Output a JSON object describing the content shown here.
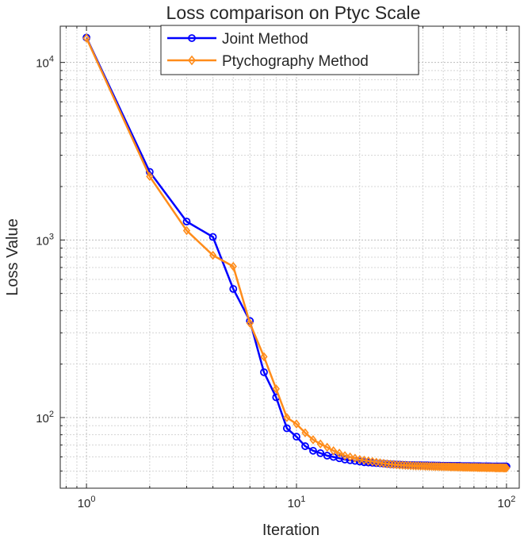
{
  "chart_data": {
    "type": "line",
    "title": "Loss comparison on Ptyc Scale",
    "xlabel": "Iteration",
    "ylabel": "Loss Value",
    "xscale": "log",
    "yscale": "log",
    "xlim": [
      0.75,
      115
    ],
    "ylim": [
      40,
      16000
    ],
    "grid": true,
    "minor_grid": true,
    "legend_placement": "top-center",
    "x_ticks": [
      {
        "base": "10",
        "exp": "0",
        "value": 1
      },
      {
        "base": "10",
        "exp": "1",
        "value": 10
      },
      {
        "base": "10",
        "exp": "2",
        "value": 100
      }
    ],
    "y_ticks": [
      {
        "base": "10",
        "exp": "2",
        "value": 100
      },
      {
        "base": "10",
        "exp": "3",
        "value": 1000
      },
      {
        "base": "10",
        "exp": "4",
        "value": 10000
      }
    ],
    "series": [
      {
        "name": "Joint Method",
        "color": "#0000ff",
        "marker": "circle",
        "x": [
          1,
          2,
          3,
          4,
          5,
          6,
          7,
          8,
          9,
          10,
          11,
          12,
          13,
          14,
          15,
          16,
          17,
          18,
          19,
          20,
          21,
          22,
          23,
          24,
          25,
          26,
          27,
          28,
          29,
          30,
          31,
          32,
          33,
          34,
          35,
          36,
          37,
          38,
          39,
          40,
          41,
          42,
          43,
          44,
          45,
          46,
          47,
          48,
          49,
          50,
          51,
          52,
          53,
          54,
          55,
          56,
          57,
          58,
          59,
          60,
          61,
          62,
          63,
          64,
          65,
          66,
          67,
          68,
          69,
          70,
          71,
          72,
          73,
          74,
          75,
          76,
          77,
          78,
          79,
          80,
          81,
          82,
          83,
          84,
          85,
          86,
          87,
          88,
          89,
          90,
          91,
          92,
          93,
          94,
          95,
          96,
          97,
          98,
          99,
          100
        ],
        "y": [
          13800,
          2420,
          1270,
          1040,
          530,
          350,
          180,
          130,
          87,
          78,
          69,
          65,
          63,
          61,
          60,
          59,
          58,
          57.5,
          57,
          56.5,
          56,
          55.8,
          55.6,
          55.4,
          55.2,
          55,
          54.8,
          54.6,
          54.5,
          54.4,
          54.3,
          54.2,
          54.1,
          54,
          54,
          54,
          53.9,
          53.9,
          53.9,
          53.8,
          53.8,
          53.8,
          53.7,
          53.7,
          53.7,
          53.6,
          53.6,
          53.6,
          53.5,
          53.5,
          53.5,
          53.5,
          53.5,
          53.5,
          53.4,
          53.4,
          53.4,
          53.4,
          53.4,
          53.4,
          53.3,
          53.3,
          53.3,
          53.3,
          53.3,
          53.3,
          53.3,
          53.2,
          53.2,
          53.2,
          53.2,
          53.2,
          53.2,
          53.2,
          53.2,
          53.1,
          53.1,
          53.1,
          53.1,
          53.1,
          53.1,
          53.1,
          53.1,
          53.1,
          53,
          53,
          53,
          53,
          53,
          53,
          53,
          53,
          53,
          53,
          53,
          53,
          53,
          53,
          53,
          53
        ]
      },
      {
        "name": "Ptychography Method",
        "color": "#ff8c1a",
        "marker": "diamond",
        "x": [
          1,
          2,
          3,
          4,
          5,
          6,
          7,
          8,
          9,
          10,
          11,
          12,
          13,
          14,
          15,
          16,
          17,
          18,
          19,
          20,
          21,
          22,
          23,
          24,
          25,
          26,
          27,
          28,
          29,
          30,
          31,
          32,
          33,
          34,
          35,
          36,
          37,
          38,
          39,
          40,
          41,
          42,
          43,
          44,
          45,
          46,
          47,
          48,
          49,
          50,
          51,
          52,
          53,
          54,
          55,
          56,
          57,
          58,
          59,
          60,
          61,
          62,
          63,
          64,
          65,
          66,
          67,
          68,
          69,
          70,
          71,
          72,
          73,
          74,
          75,
          76,
          77,
          78,
          79,
          80,
          81,
          82,
          83,
          84,
          85,
          86,
          87,
          88,
          89,
          90,
          91,
          92,
          93,
          94,
          95,
          96,
          97,
          98,
          99,
          100
        ],
        "y": [
          13700,
          2280,
          1130,
          820,
          710,
          340,
          220,
          145,
          100,
          92,
          82,
          75,
          71,
          68,
          65,
          63,
          61,
          60,
          59,
          58,
          57.5,
          57,
          56.5,
          56,
          55.6,
          55.2,
          54.9,
          54.6,
          54.4,
          54.2,
          54,
          53.9,
          53.8,
          53.7,
          53.6,
          53.5,
          53.4,
          53.4,
          53.3,
          53.3,
          53.2,
          53.2,
          53.1,
          53.1,
          53,
          53,
          53,
          52.9,
          52.9,
          52.9,
          52.8,
          52.8,
          52.8,
          52.7,
          52.7,
          52.7,
          52.7,
          52.6,
          52.6,
          52.6,
          52.6,
          52.5,
          52.5,
          52.5,
          52.5,
          52.5,
          52.4,
          52.4,
          52.4,
          52.4,
          52.4,
          52.4,
          52.3,
          52.3,
          52.3,
          52.3,
          52.3,
          52.3,
          52.3,
          52.2,
          52.2,
          52.2,
          52.2,
          52.2,
          52.2,
          52.2,
          52.2,
          52.1,
          52.1,
          52.1,
          52.1,
          52.1,
          52.1,
          52.1,
          52.1,
          52.1,
          52,
          52,
          52,
          52
        ]
      }
    ]
  }
}
